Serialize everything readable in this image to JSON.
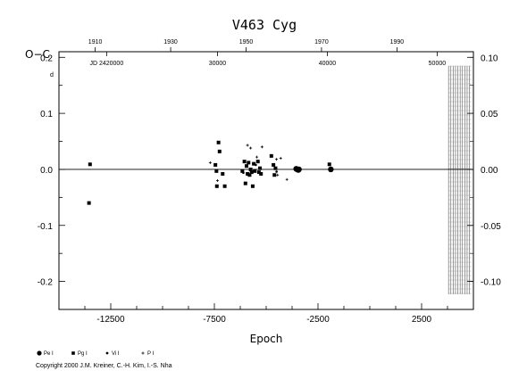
{
  "chart_data": {
    "type": "scatter",
    "title": "V463 Cyg",
    "xlabel": "Epoch",
    "ylabel": "O−C",
    "ylabel_unit": "d",
    "xlim": [
      -15000,
      5000
    ],
    "ylim": [
      -0.25,
      0.21
    ],
    "x_ticks": [
      "-12500",
      "-7500",
      "-2500",
      "2500"
    ],
    "x_tick_values": [
      -12500,
      -7500,
      -2500,
      2500
    ],
    "y_ticks_left": [
      "0.2",
      "0.1",
      "0.0",
      "-0.1",
      "-0.2"
    ],
    "y_tick_left_values": [
      0.2,
      0.1,
      0.0,
      -0.1,
      -0.2
    ],
    "y_ticks_right": [
      "0.10",
      "0.05",
      "0.00",
      "-0.05",
      "-0.10"
    ],
    "y_tick_right_values": [
      0.1,
      0.05,
      0.0,
      -0.05,
      -0.1
    ],
    "top_year_ticks": [
      "1910",
      "1930",
      "1950",
      "1970",
      "1990"
    ],
    "top_year_epochs": [
      -13250,
      -9610,
      -5970,
      -2330,
      1310
    ],
    "top_jd_ticks": [
      "JD 2420000",
      "30000",
      "40000",
      "50000"
    ],
    "top_jd_epochs": [
      -12700,
      -7350,
      -2050,
      3250
    ],
    "hatched_region_epoch": [
      3800,
      5000
    ],
    "series": [
      {
        "name": "Pe I",
        "marker": "circle",
        "points": [
          [
            -3550,
            0.001
          ],
          [
            -3500,
            0.0
          ],
          [
            -3450,
            -0.001
          ],
          [
            -3420,
            0.0
          ],
          [
            -1880,
            0.0
          ]
        ]
      },
      {
        "name": "Pg I",
        "marker": "square",
        "points": [
          [
            -13500,
            0.009
          ],
          [
            -13550,
            -0.06
          ],
          [
            -7450,
            0.008
          ],
          [
            -7400,
            -0.003
          ],
          [
            -7380,
            -0.03
          ],
          [
            -7300,
            0.048
          ],
          [
            -7250,
            0.032
          ],
          [
            -7100,
            -0.008
          ],
          [
            -7000,
            -0.03
          ],
          [
            -6150,
            -0.003
          ],
          [
            -6050,
            0.014
          ],
          [
            -6000,
            -0.025
          ],
          [
            -5950,
            0.006
          ],
          [
            -5900,
            -0.008
          ],
          [
            -5850,
            0.012
          ],
          [
            -5800,
            -0.01
          ],
          [
            -5750,
            0.0
          ],
          [
            -5700,
            -0.005
          ],
          [
            -5650,
            -0.03
          ],
          [
            -5600,
            0.01
          ],
          [
            -5550,
            -0.003
          ],
          [
            -5400,
            0.014
          ],
          [
            -5350,
            -0.005
          ],
          [
            -5300,
            0.002
          ],
          [
            -5250,
            -0.008
          ],
          [
            -4750,
            0.024
          ],
          [
            -4650,
            0.008
          ],
          [
            -4600,
            -0.01
          ],
          [
            -4550,
            0.002
          ],
          [
            -1950,
            0.009
          ]
        ]
      },
      {
        "name": "Vi I",
        "marker": "dot",
        "points": [
          [
            -6100,
            -0.006
          ],
          [
            -5500,
            0.008
          ],
          [
            -4500,
            -0.004
          ]
        ]
      },
      {
        "name": "P I",
        "marker": "plus",
        "points": [
          [
            -7700,
            0.012
          ],
          [
            -7350,
            -0.02
          ],
          [
            -5900,
            0.043
          ],
          [
            -5750,
            0.038
          ],
          [
            -5450,
            0.022
          ],
          [
            -5200,
            0.04
          ],
          [
            -4500,
            0.018
          ],
          [
            -4300,
            0.02
          ],
          [
            -4000,
            -0.018
          ],
          [
            -4450,
            -0.01
          ]
        ]
      }
    ],
    "legend_position": "bottom-left"
  },
  "copyright": "Copyright 2000 J.M. Kreiner, C.-H. Kim, I.-S. Nha"
}
